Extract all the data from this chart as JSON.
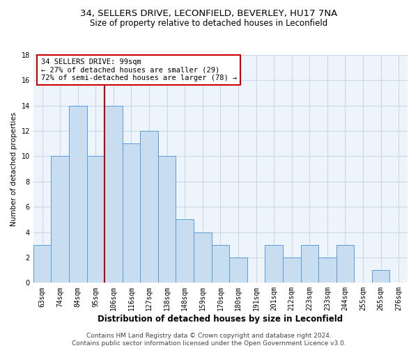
{
  "title_line1": "34, SELLERS DRIVE, LECONFIELD, BEVERLEY, HU17 7NA",
  "title_line2": "Size of property relative to detached houses in Leconfield",
  "xlabel": "Distribution of detached houses by size in Leconfield",
  "ylabel": "Number of detached properties",
  "categories": [
    "63sqm",
    "74sqm",
    "84sqm",
    "95sqm",
    "106sqm",
    "116sqm",
    "127sqm",
    "138sqm",
    "148sqm",
    "159sqm",
    "170sqm",
    "180sqm",
    "191sqm",
    "201sqm",
    "212sqm",
    "223sqm",
    "233sqm",
    "244sqm",
    "255sqm",
    "265sqm",
    "276sqm"
  ],
  "values": [
    3,
    10,
    14,
    10,
    14,
    11,
    12,
    10,
    5,
    4,
    3,
    2,
    0,
    3,
    2,
    3,
    2,
    3,
    0,
    1,
    0
  ],
  "bar_color": "#c9ddf0",
  "bar_edge_color": "#5b9bd5",
  "bar_width": 1.0,
  "vline_x": 3.5,
  "vline_color": "#cc0000",
  "annotation_text": "34 SELLERS DRIVE: 99sqm\n← 27% of detached houses are smaller (29)\n72% of semi-detached houses are larger (78) →",
  "annotation_box_color": "#ffffff",
  "annotation_box_edge_color": "#cc0000",
  "ylim": [
    0,
    18
  ],
  "yticks": [
    0,
    2,
    4,
    6,
    8,
    10,
    12,
    14,
    16,
    18
  ],
  "grid_color": "#c8d8e8",
  "background_color": "#eef4fb",
  "footer_text": "Contains HM Land Registry data © Crown copyright and database right 2024.\nContains public sector information licensed under the Open Government Licence v3.0.",
  "title_fontsize": 9.5,
  "subtitle_fontsize": 8.5,
  "xlabel_fontsize": 8.5,
  "ylabel_fontsize": 7.5,
  "tick_fontsize": 7,
  "annotation_fontsize": 7.5,
  "footer_fontsize": 6.5
}
